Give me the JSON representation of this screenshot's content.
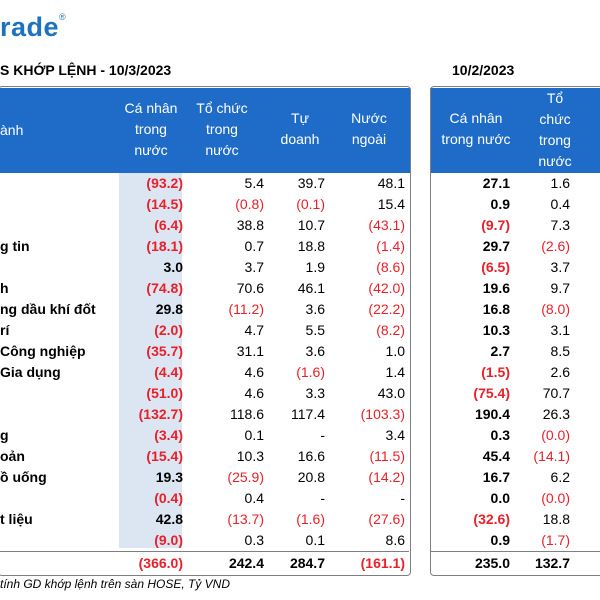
{
  "logo": "rade",
  "logo_mark": "®",
  "title_left": "S KHỚP LỆNH - 10/3/2023",
  "title_right": "10/2/2023",
  "header_left": {
    "sector": "ành",
    "col1": [
      "Cá nhân",
      "trong",
      "nước"
    ],
    "col2": [
      "Tổ chức",
      "trong",
      "nước"
    ],
    "col3": [
      "Tự",
      "doanh"
    ],
    "col4": [
      "Nước",
      "ngoài"
    ]
  },
  "header_right": {
    "col1": [
      "Cá nhân",
      "trong nước"
    ],
    "col2": [
      "Tổ",
      "chức",
      "trong",
      "nước"
    ]
  },
  "rows": [
    {
      "label": "",
      "v": [
        "(93.2)",
        "5.4",
        "39.7",
        "48.1"
      ],
      "r": [
        "27.1",
        "1.6"
      ]
    },
    {
      "label": "",
      "v": [
        "(14.5)",
        "(0.8)",
        "(0.1)",
        "15.4"
      ],
      "r": [
        "0.9",
        "0.4"
      ]
    },
    {
      "label": "",
      "v": [
        "(6.4)",
        "38.8",
        "10.7",
        "(43.1)"
      ],
      "r": [
        "(9.7)",
        "7.3"
      ]
    },
    {
      "label": "g tin",
      "v": [
        "(18.1)",
        "0.7",
        "18.8",
        "(1.4)"
      ],
      "r": [
        "29.7",
        "(2.6)"
      ]
    },
    {
      "label": "",
      "v": [
        "3.0",
        "3.7",
        "1.9",
        "(8.6)"
      ],
      "r": [
        "(6.5)",
        "3.7"
      ]
    },
    {
      "label": "h",
      "v": [
        "(74.8)",
        "70.6",
        "46.1",
        "(42.0)"
      ],
      "r": [
        "19.6",
        "9.7"
      ]
    },
    {
      "label": "ng dầu khí đốt",
      "v": [
        "29.8",
        "(11.2)",
        "3.6",
        "(22.2)"
      ],
      "r": [
        "16.8",
        "(8.0)"
      ]
    },
    {
      "label": "rí",
      "v": [
        "(2.0)",
        "4.7",
        "5.5",
        "(8.2)"
      ],
      "r": [
        "10.3",
        "3.1"
      ]
    },
    {
      "label": "Công nghiệp",
      "v": [
        "(35.7)",
        "31.1",
        "3.6",
        "1.0"
      ],
      "r": [
        "2.7",
        "8.5"
      ]
    },
    {
      "label": "Gia dụng",
      "v": [
        "(4.4)",
        "4.6",
        "(1.6)",
        "1.4"
      ],
      "r": [
        "(1.5)",
        "2.6"
      ]
    },
    {
      "label": "",
      "v": [
        "(51.0)",
        "4.6",
        "3.3",
        "43.0"
      ],
      "r": [
        "(75.4)",
        "70.7"
      ]
    },
    {
      "label": "",
      "v": [
        "(132.7)",
        "118.6",
        "117.4",
        "(103.3)"
      ],
      "r": [
        "190.4",
        "26.3"
      ]
    },
    {
      "label": "g",
      "v": [
        "(3.4)",
        "0.1",
        "-",
        "3.4"
      ],
      "r": [
        "0.3",
        "(0.0)"
      ]
    },
    {
      "label": "oản",
      "v": [
        "(15.4)",
        "10.3",
        "16.6",
        "(11.5)"
      ],
      "r": [
        "45.4",
        "(14.1)"
      ]
    },
    {
      "label": "ồ uống",
      "v": [
        "19.3",
        "(25.9)",
        "20.8",
        "(14.2)"
      ],
      "r": [
        "16.7",
        "6.2"
      ]
    },
    {
      "label": "",
      "v": [
        "(0.4)",
        "0.4",
        "-",
        "-"
      ],
      "r": [
        "0.0",
        "(0.0)"
      ]
    },
    {
      "label": "t liệu",
      "v": [
        "42.8",
        "(13.7)",
        "(1.6)",
        "(27.6)"
      ],
      "r": [
        "(32.6)",
        "18.8"
      ]
    },
    {
      "label": "",
      "v": [
        "(9.0)",
        "0.3",
        "0.1",
        "8.6"
      ],
      "r": [
        "0.9",
        "(1.7)"
      ]
    }
  ],
  "total": {
    "v": [
      "(366.0)",
      "242.4",
      "284.7",
      "(161.1)"
    ],
    "r": [
      "235.0",
      "132.7"
    ]
  },
  "footnote": "tính GD khớp lệnh trên sàn HOSE, Tỷ VND",
  "colors": {
    "header": "#1f6cc8",
    "negative": "#e8202a",
    "shade": "#dce6f2",
    "logo": "#1e73be"
  }
}
